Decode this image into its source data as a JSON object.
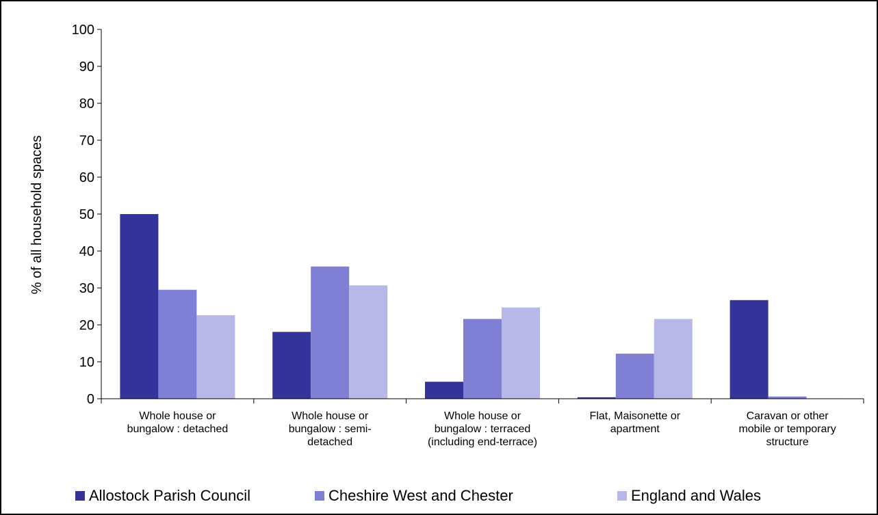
{
  "chart_data": {
    "type": "bar",
    "title": "",
    "xlabel": "",
    "ylabel": "% of all household spaces",
    "ylim": [
      0,
      100
    ],
    "yticks": [
      0,
      10,
      20,
      30,
      40,
      50,
      60,
      70,
      80,
      90,
      100
    ],
    "grid": false,
    "legend_position": "bottom",
    "categories": [
      [
        "Whole house or",
        "bungalow : detached"
      ],
      [
        "Whole house or",
        "bungalow : semi-",
        "detached"
      ],
      [
        "Whole house or",
        "bungalow : terraced",
        "(including end-terrace)"
      ],
      [
        "Flat, Maisonette or",
        "apartment"
      ],
      [
        "Caravan or other",
        "mobile or temporary",
        "structure"
      ]
    ],
    "series": [
      {
        "name": "Allostock Parish Council",
        "color": "#333399",
        "values": [
          50.0,
          18.1,
          4.6,
          0.4,
          26.7
        ]
      },
      {
        "name": "Cheshire West and Chester",
        "color": "#7F7FD6",
        "values": [
          29.5,
          35.8,
          21.6,
          12.2,
          0.6
        ]
      },
      {
        "name": "England and Wales",
        "color": "#B8B8E8",
        "values": [
          22.6,
          30.7,
          24.7,
          21.6,
          0.1
        ]
      }
    ]
  }
}
